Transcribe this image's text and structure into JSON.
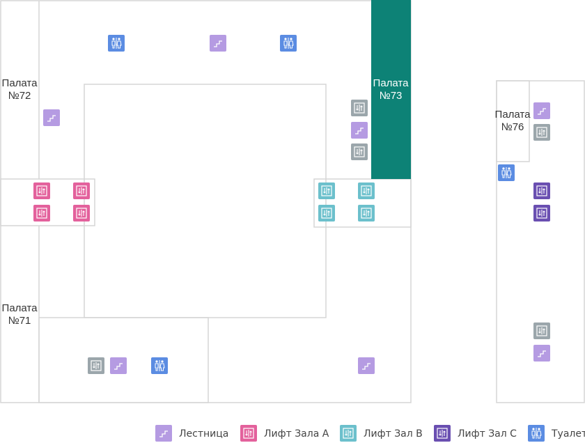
{
  "rooms": [
    {
      "name": "Палата",
      "number": "№72"
    },
    {
      "name": "Палата",
      "number": "№73"
    },
    {
      "name": "Палата",
      "number": "№71"
    },
    {
      "name": "Палата",
      "number": "№76"
    }
  ],
  "legend": [
    {
      "label": "Лестница",
      "color": "#b59be2"
    },
    {
      "label": "Лифт Зала A",
      "color": "#e3619c"
    },
    {
      "label": "Лифт Зал B",
      "color": "#6cc0cc"
    },
    {
      "label": "Лифт Зал C",
      "color": "#6a4fb1"
    },
    {
      "label": "Туалет",
      "color": "#5b8ce2"
    }
  ]
}
